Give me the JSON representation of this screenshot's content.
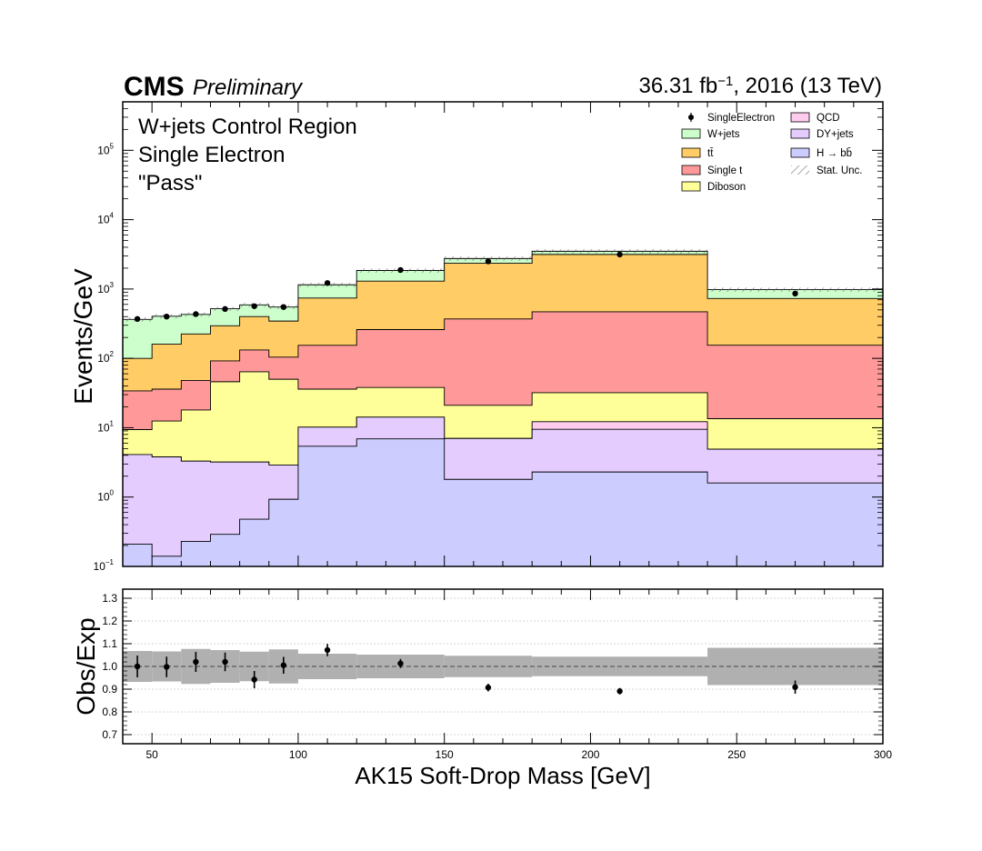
{
  "header": {
    "experiment": "CMS",
    "status": "Preliminary",
    "lumi_value": "36.31 fb",
    "lumi_exp": "−1",
    "lumi_rest": ", 2016 (13 TeV)"
  },
  "region_lines": [
    "W+jets Control Region",
    "Single Electron",
    "\"Pass\""
  ],
  "colors": {
    "QCD": "#ffccee",
    "DY+jets": "#e5ccff",
    "H → bb̄": "#ccccff",
    "Diboson": "#ffff99",
    "Single t": "#ff9999",
    "tt̄": "#ffcc66",
    "W+jets": "#ccffcc",
    "band": "#b0b0b0"
  },
  "chart_data": [
    {
      "type": "area",
      "subtype": "stacked-step-histogram",
      "ylabel": "Events/GeV",
      "yscale": "log",
      "ylim": [
        0.1,
        500000
      ],
      "xlim": [
        40,
        300
      ],
      "ytick_labels": [
        {
          "base": "10",
          "exp": "−1",
          "value": 0.1
        },
        {
          "base": "10",
          "exp": "0",
          "value": 1
        },
        {
          "base": "10",
          "exp": "1",
          "value": 10
        },
        {
          "base": "10",
          "exp": "2",
          "value": 100
        },
        {
          "base": "10",
          "exp": "3",
          "value": 1000
        },
        {
          "base": "10",
          "exp": "4",
          "value": 10000
        },
        {
          "base": "10",
          "exp": "5",
          "value": 100000
        }
      ],
      "bin_edges": [
        40,
        50,
        60,
        70,
        80,
        90,
        100,
        120,
        150,
        180,
        240,
        300
      ],
      "cumulative_series": [
        {
          "name": "W+jets",
          "values": [
            365,
            405,
            430,
            520,
            590,
            550,
            1150,
            1850,
            2750,
            3500,
            980
          ]
        },
        {
          "name": "tt̄",
          "values": [
            100,
            160,
            225,
            295,
            400,
            345,
            740,
            1300,
            2350,
            3150,
            730
          ]
        },
        {
          "name": "Single t",
          "values": [
            34,
            36,
            48,
            92,
            132,
            104,
            154,
            260,
            370,
            470,
            155
          ]
        },
        {
          "name": "Diboson",
          "values": [
            9.4,
            12.5,
            18,
            46,
            64,
            50,
            36,
            38,
            21,
            32,
            13.5
          ]
        },
        {
          "name": "QCD",
          "values": [
            4.1,
            3.8,
            3.3,
            3.2,
            3.2,
            2.9,
            10.2,
            14.2,
            7.0,
            12.2,
            4.9
          ]
        },
        {
          "name": "DY+jets",
          "values": [
            4.1,
            3.8,
            3.3,
            3.2,
            3.2,
            2.9,
            10.2,
            14.2,
            7.0,
            9.5,
            4.9
          ]
        },
        {
          "name": "H → bb̄",
          "values": [
            0.21,
            0.14,
            0.23,
            0.29,
            0.48,
            0.93,
            5.4,
            6.9,
            1.8,
            2.3,
            1.6
          ]
        }
      ],
      "data_series": {
        "name": "SingleElectron",
        "x": [
          45,
          55,
          65,
          75,
          85,
          95,
          110,
          135,
          165,
          210,
          270
        ],
        "y": [
          370,
          400,
          435,
          515,
          565,
          550,
          1220,
          1880,
          2500,
          3150,
          860
        ]
      },
      "legend": {
        "placement": "top-right",
        "entries": [
          "SingleElectron",
          "W+jets",
          "tt̄",
          "Single t",
          "Diboson",
          "QCD",
          "DY+jets",
          "H → bb̄",
          "Stat. Unc."
        ]
      }
    },
    {
      "type": "scatter",
      "ylabel": "Obs/Exp",
      "xlabel": "AK15 Soft-Drop Mass [GeV]",
      "xlim": [
        40,
        300
      ],
      "ylim": [
        0.66,
        1.34
      ],
      "grid": true,
      "xticks": [
        50,
        100,
        150,
        200,
        250,
        300
      ],
      "yticks": [
        "0.7",
        "0.8",
        "0.9",
        "1.0",
        "1.1",
        "1.2",
        "1.3"
      ],
      "bin_edges": [
        40,
        50,
        60,
        70,
        80,
        90,
        100,
        120,
        150,
        180,
        240,
        300
      ],
      "band_half_width": [
        0.068,
        0.066,
        0.077,
        0.072,
        0.065,
        0.075,
        0.056,
        0.052,
        0.047,
        0.043,
        0.082
      ],
      "x": [
        45,
        55,
        65,
        75,
        85,
        95,
        110,
        135,
        165,
        210,
        270
      ],
      "y": [
        1.0,
        0.998,
        1.02,
        1.02,
        0.942,
        1.005,
        1.072,
        1.013,
        0.907,
        0.891,
        0.909
      ],
      "yerr": [
        0.048,
        0.045,
        0.044,
        0.041,
        0.038,
        0.037,
        0.027,
        0.02,
        0.017,
        0.014,
        0.029
      ]
    }
  ]
}
